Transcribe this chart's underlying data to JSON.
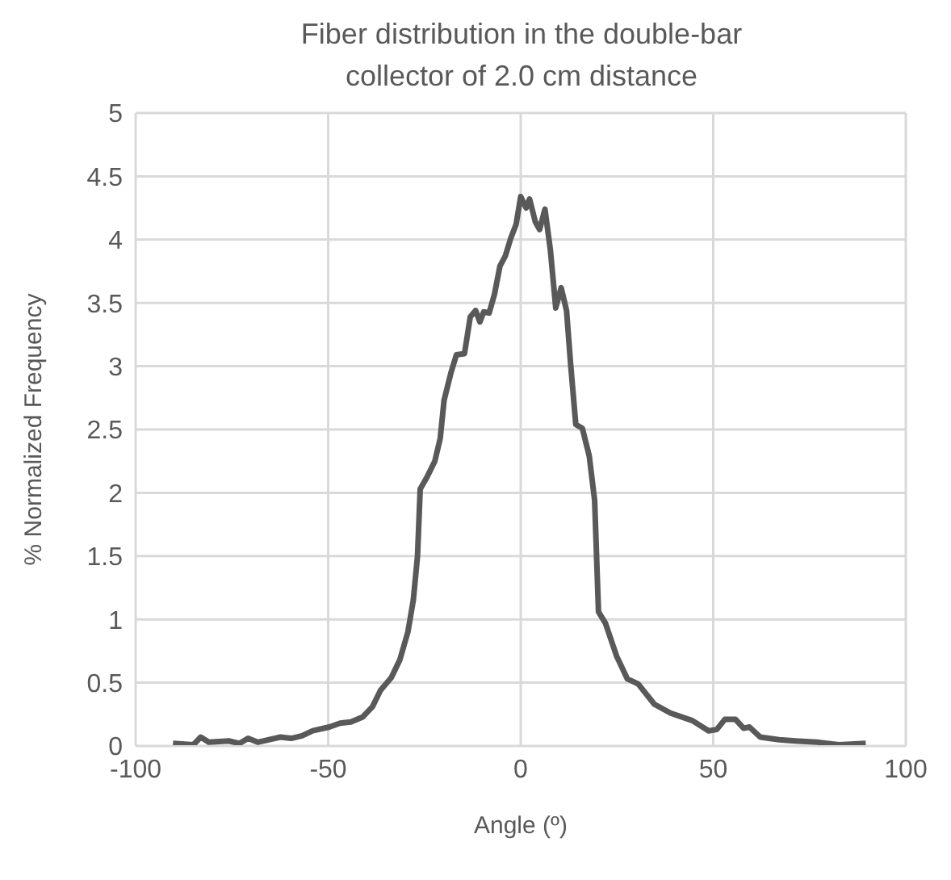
{
  "chart_data": {
    "type": "line",
    "title": "Fiber distribution in the double-bar collector of 2.0 cm distance",
    "xlabel": "Angle (º)",
    "ylabel": "% Normalized Frequency",
    "xlim": [
      -100,
      100
    ],
    "xticks": [
      -100,
      -50,
      0,
      50,
      100
    ],
    "ylim": [
      0,
      5
    ],
    "yticks": [
      0,
      0.5,
      1,
      1.5,
      2,
      2.5,
      3,
      3.5,
      4,
      4.5,
      5
    ],
    "grid": true,
    "marker": "none",
    "line_style": "solid",
    "x": [
      -90.3,
      -85,
      -83.1,
      -81,
      -75.8,
      -73,
      -70.8,
      -68.3,
      -62.4,
      -59.6,
      -56.8,
      -54,
      -49.7,
      -46.9,
      -44.1,
      -41,
      -38.5,
      -36.4,
      -33.6,
      -31.4,
      -29.3,
      -27.9,
      -26.8,
      -26.1,
      -24.4,
      -22.3,
      -20.9,
      -19.9,
      -18.1,
      -16.7,
      -14.6,
      -13.1,
      -11.7,
      -10.6,
      -9.6,
      -8.2,
      -6.8,
      -5.4,
      -4,
      -2.6,
      -1.2,
      0,
      1.4,
      2.3,
      3.8,
      4.9,
      6.3,
      7.7,
      9.1,
      10.5,
      11.9,
      12.9,
      14.3,
      16,
      17.8,
      19.2,
      20.2,
      22,
      24.9,
      27.7,
      30.5,
      34.7,
      38.9,
      44.6,
      48.8,
      50.9,
      53,
      55.8,
      57.9,
      59.4,
      62.2,
      67.1,
      71.3,
      77,
      82.6,
      89.6
    ],
    "series": [
      {
        "color": "#595959",
        "values": [
          0.02,
          0.01,
          0.07,
          0.03,
          0.04,
          0.02,
          0.06,
          0.03,
          0.07,
          0.06,
          0.08,
          0.12,
          0.15,
          0.18,
          0.19,
          0.23,
          0.31,
          0.44,
          0.54,
          0.68,
          0.9,
          1.15,
          1.5,
          2.03,
          2.12,
          2.25,
          2.43,
          2.73,
          2.95,
          3.09,
          3.1,
          3.39,
          3.44,
          3.35,
          3.43,
          3.42,
          3.57,
          3.79,
          3.87,
          4.01,
          4.12,
          4.34,
          4.25,
          4.32,
          4.14,
          4.08,
          4.24,
          3.92,
          3.46,
          3.62,
          3.44,
          3.04,
          2.54,
          2.51,
          2.29,
          1.94,
          1.06,
          0.97,
          0.71,
          0.53,
          0.49,
          0.33,
          0.26,
          0.2,
          0.12,
          0.13,
          0.21,
          0.21,
          0.14,
          0.15,
          0.07,
          0.05,
          0.04,
          0.03,
          0.01,
          0.02
        ]
      }
    ]
  }
}
